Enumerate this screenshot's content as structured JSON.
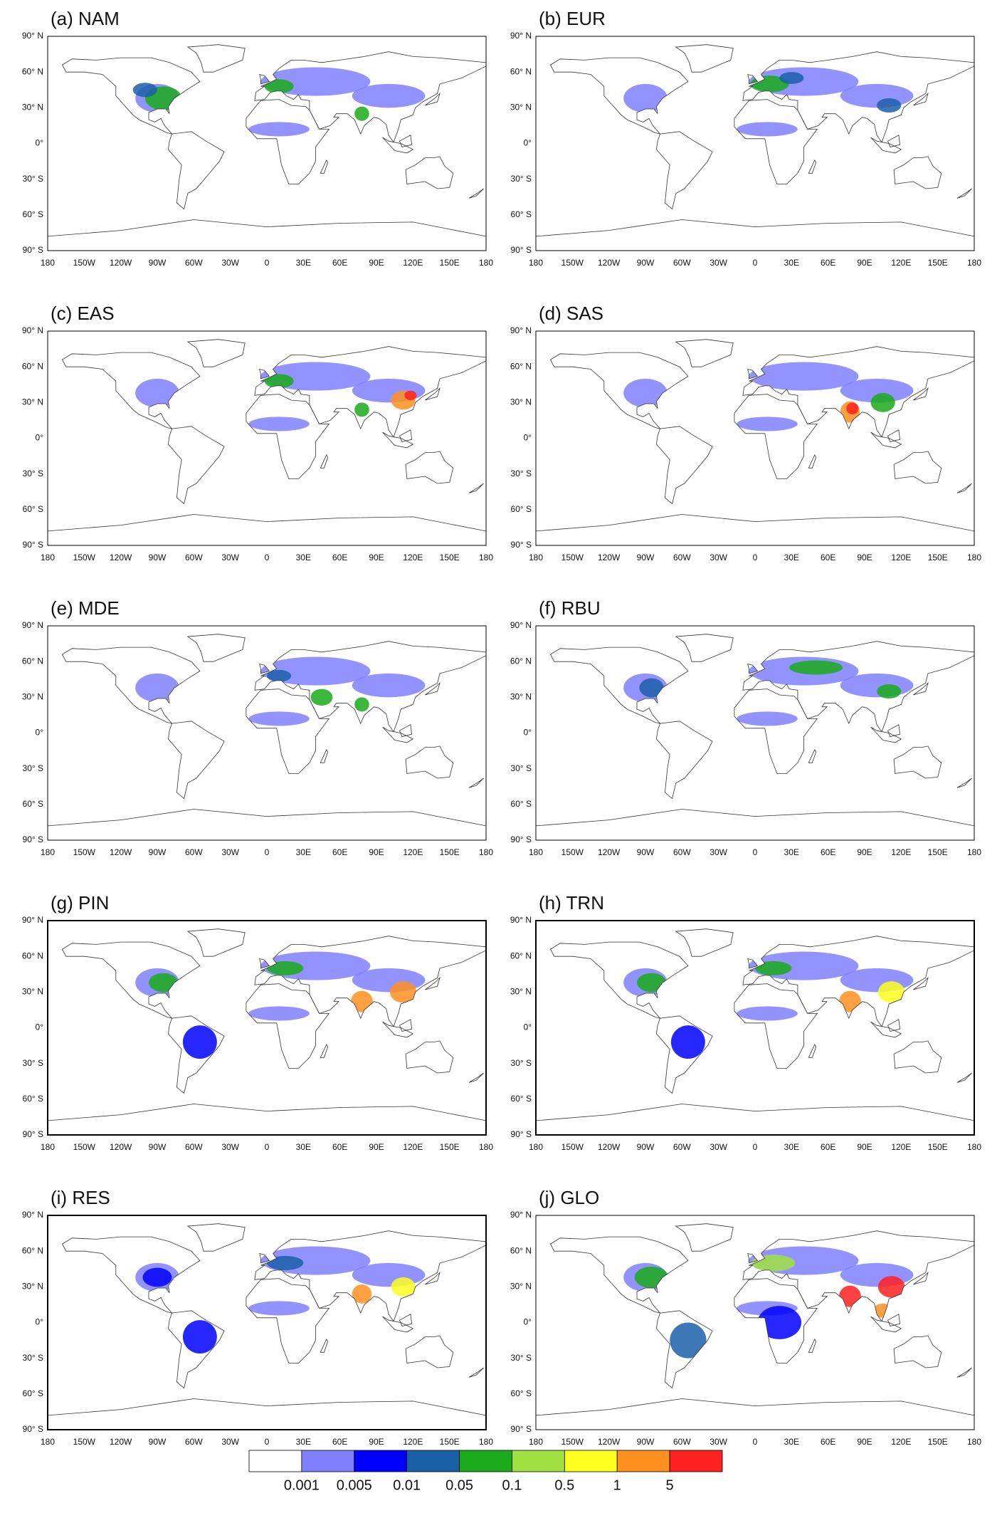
{
  "panels": [
    {
      "title": "(a) NAM"
    },
    {
      "title": "(b) EUR"
    },
    {
      "title": "(c) EAS"
    },
    {
      "title": "(d) SAS"
    },
    {
      "title": "(e) MDE"
    },
    {
      "title": "(f) RBU"
    },
    {
      "title": "(g) PIN"
    },
    {
      "title": "(h) TRN"
    },
    {
      "title": "(i) RES"
    },
    {
      "title": "(j) GLO"
    }
  ],
  "lat_labels": [
    "90° N",
    "60° N",
    "30° N",
    "0°",
    "30° S",
    "60° S",
    "90° S"
  ],
  "lon_labels": [
    "180",
    "150W",
    "120W",
    "90W",
    "60W",
    "30W",
    "0",
    "30E",
    "60E",
    "90E",
    "120E",
    "150E",
    "180"
  ],
  "colorbar": {
    "colors": [
      "#ffffff",
      "#8080ff",
      "#0000ff",
      "#1b5fa8",
      "#1aaa1a",
      "#a0e040",
      "#ffff20",
      "#ff9020",
      "#ff2020"
    ],
    "labels": [
      "0.001",
      "0.005",
      "0.01",
      "0.05",
      "0.1",
      "0.5",
      "1",
      "5"
    ]
  }
}
